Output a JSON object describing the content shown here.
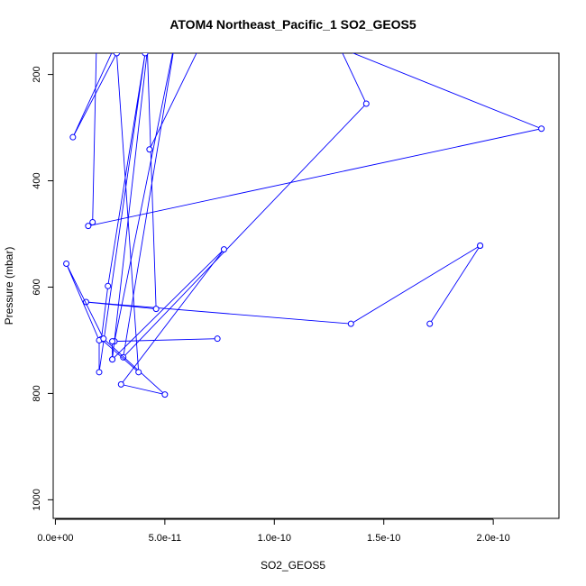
{
  "chart_data": {
    "type": "line",
    "title": "ATOM4 Northeast_Pacific_1 SO2_GEOS5",
    "xlabel": "SO2_GEOS5",
    "ylabel": "Pressure (mbar)",
    "xlim": [
      -1e-12,
      2.3e-10
    ],
    "ylim": [
      1035,
      160
    ],
    "y_reversed": true,
    "x_ticks": [
      0,
      5e-11,
      1e-10,
      1.5e-10,
      2e-10
    ],
    "x_tick_labels": [
      "0.0e+00",
      "5.0e-11",
      "1.0e-10",
      "1.5e-10",
      "2.0e-10"
    ],
    "y_ticks": [
      200,
      400,
      600,
      800,
      1000
    ],
    "y_tick_labels": [
      "200",
      "400",
      "600",
      "800",
      "1000"
    ],
    "grid": false,
    "series": [
      {
        "color": "#0000ff",
        "points": [
          [
            1.9e-11,
            100
          ],
          [
            1.7e-11,
            478
          ],
          [
            1.5e-11,
            485
          ],
          [
            2.22e-10,
            302
          ],
          [
            1.3e-10,
            150
          ],
          [
            1.42e-10,
            255
          ],
          [
            3.1e-11,
            732
          ],
          [
            5.5e-11,
            130
          ],
          [
            2.7e-11,
            702
          ],
          [
            7.4e-11,
            697
          ],
          [
            2.6e-11,
            702
          ],
          [
            2.6e-11,
            736
          ],
          [
            4.2e-11,
            155
          ],
          [
            4.6e-11,
            641
          ],
          [
            1.4e-11,
            628
          ],
          [
            1.35e-10,
            669
          ],
          [
            1.94e-10,
            522
          ],
          [
            1.71e-10,
            669
          ],
          [
            1.94e-10,
            522
          ]
        ]
      },
      {
        "color": "#0000ff",
        "points": [
          [
            4.3e-11,
            341
          ],
          [
            6.8e-11,
            130
          ],
          [
            2.9e-11,
            130
          ],
          [
            8e-12,
            318
          ],
          [
            2.8e-11,
            160
          ],
          [
            3.8e-11,
            760
          ],
          [
            2.1e-11,
            698
          ],
          [
            2.4e-11,
            598
          ],
          [
            4.1e-11,
            160
          ],
          [
            2e-11,
            760
          ],
          [
            2e-11,
            700
          ],
          [
            5e-12,
            556
          ],
          [
            2.2e-11,
            697
          ],
          [
            5e-11,
            802
          ],
          [
            3e-11,
            783
          ],
          [
            7.7e-11,
            529
          ],
          [
            2.6e-11,
            736
          ]
        ]
      }
    ]
  }
}
